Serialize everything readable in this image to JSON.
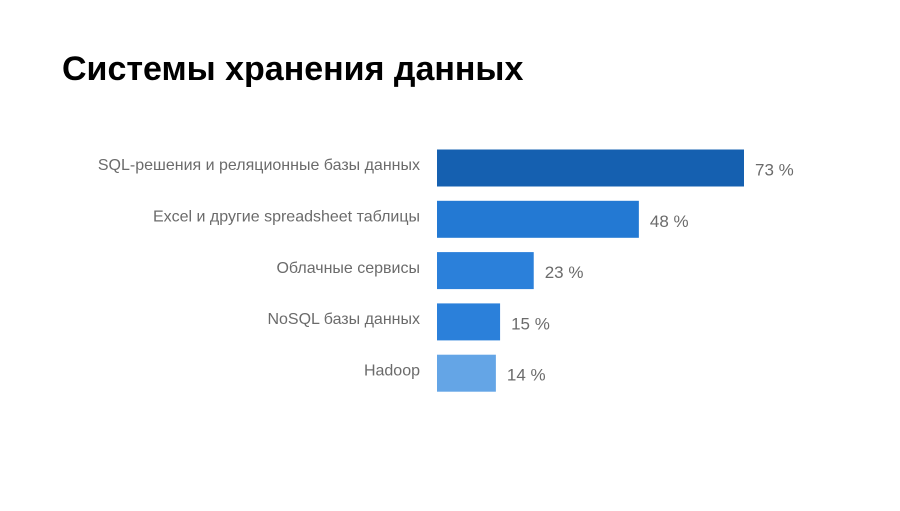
{
  "chart_data": {
    "type": "bar",
    "orientation": "horizontal",
    "title": "Системы хранения данных",
    "categories": [
      "SQL-решения и реляционные базы данных",
      "Excel и другие spreadsheet таблицы",
      "Облачные сервисы",
      "NoSQL базы данных",
      "Hadoop"
    ],
    "values": [
      73,
      48,
      23,
      15,
      14
    ],
    "value_labels": [
      "73 %",
      "48 %",
      "23 %",
      "15 %",
      "14 %"
    ],
    "colors": [
      "#1560b0",
      "#2379d3",
      "#2b80da",
      "#2b80da",
      "#64a5e6"
    ]
  }
}
